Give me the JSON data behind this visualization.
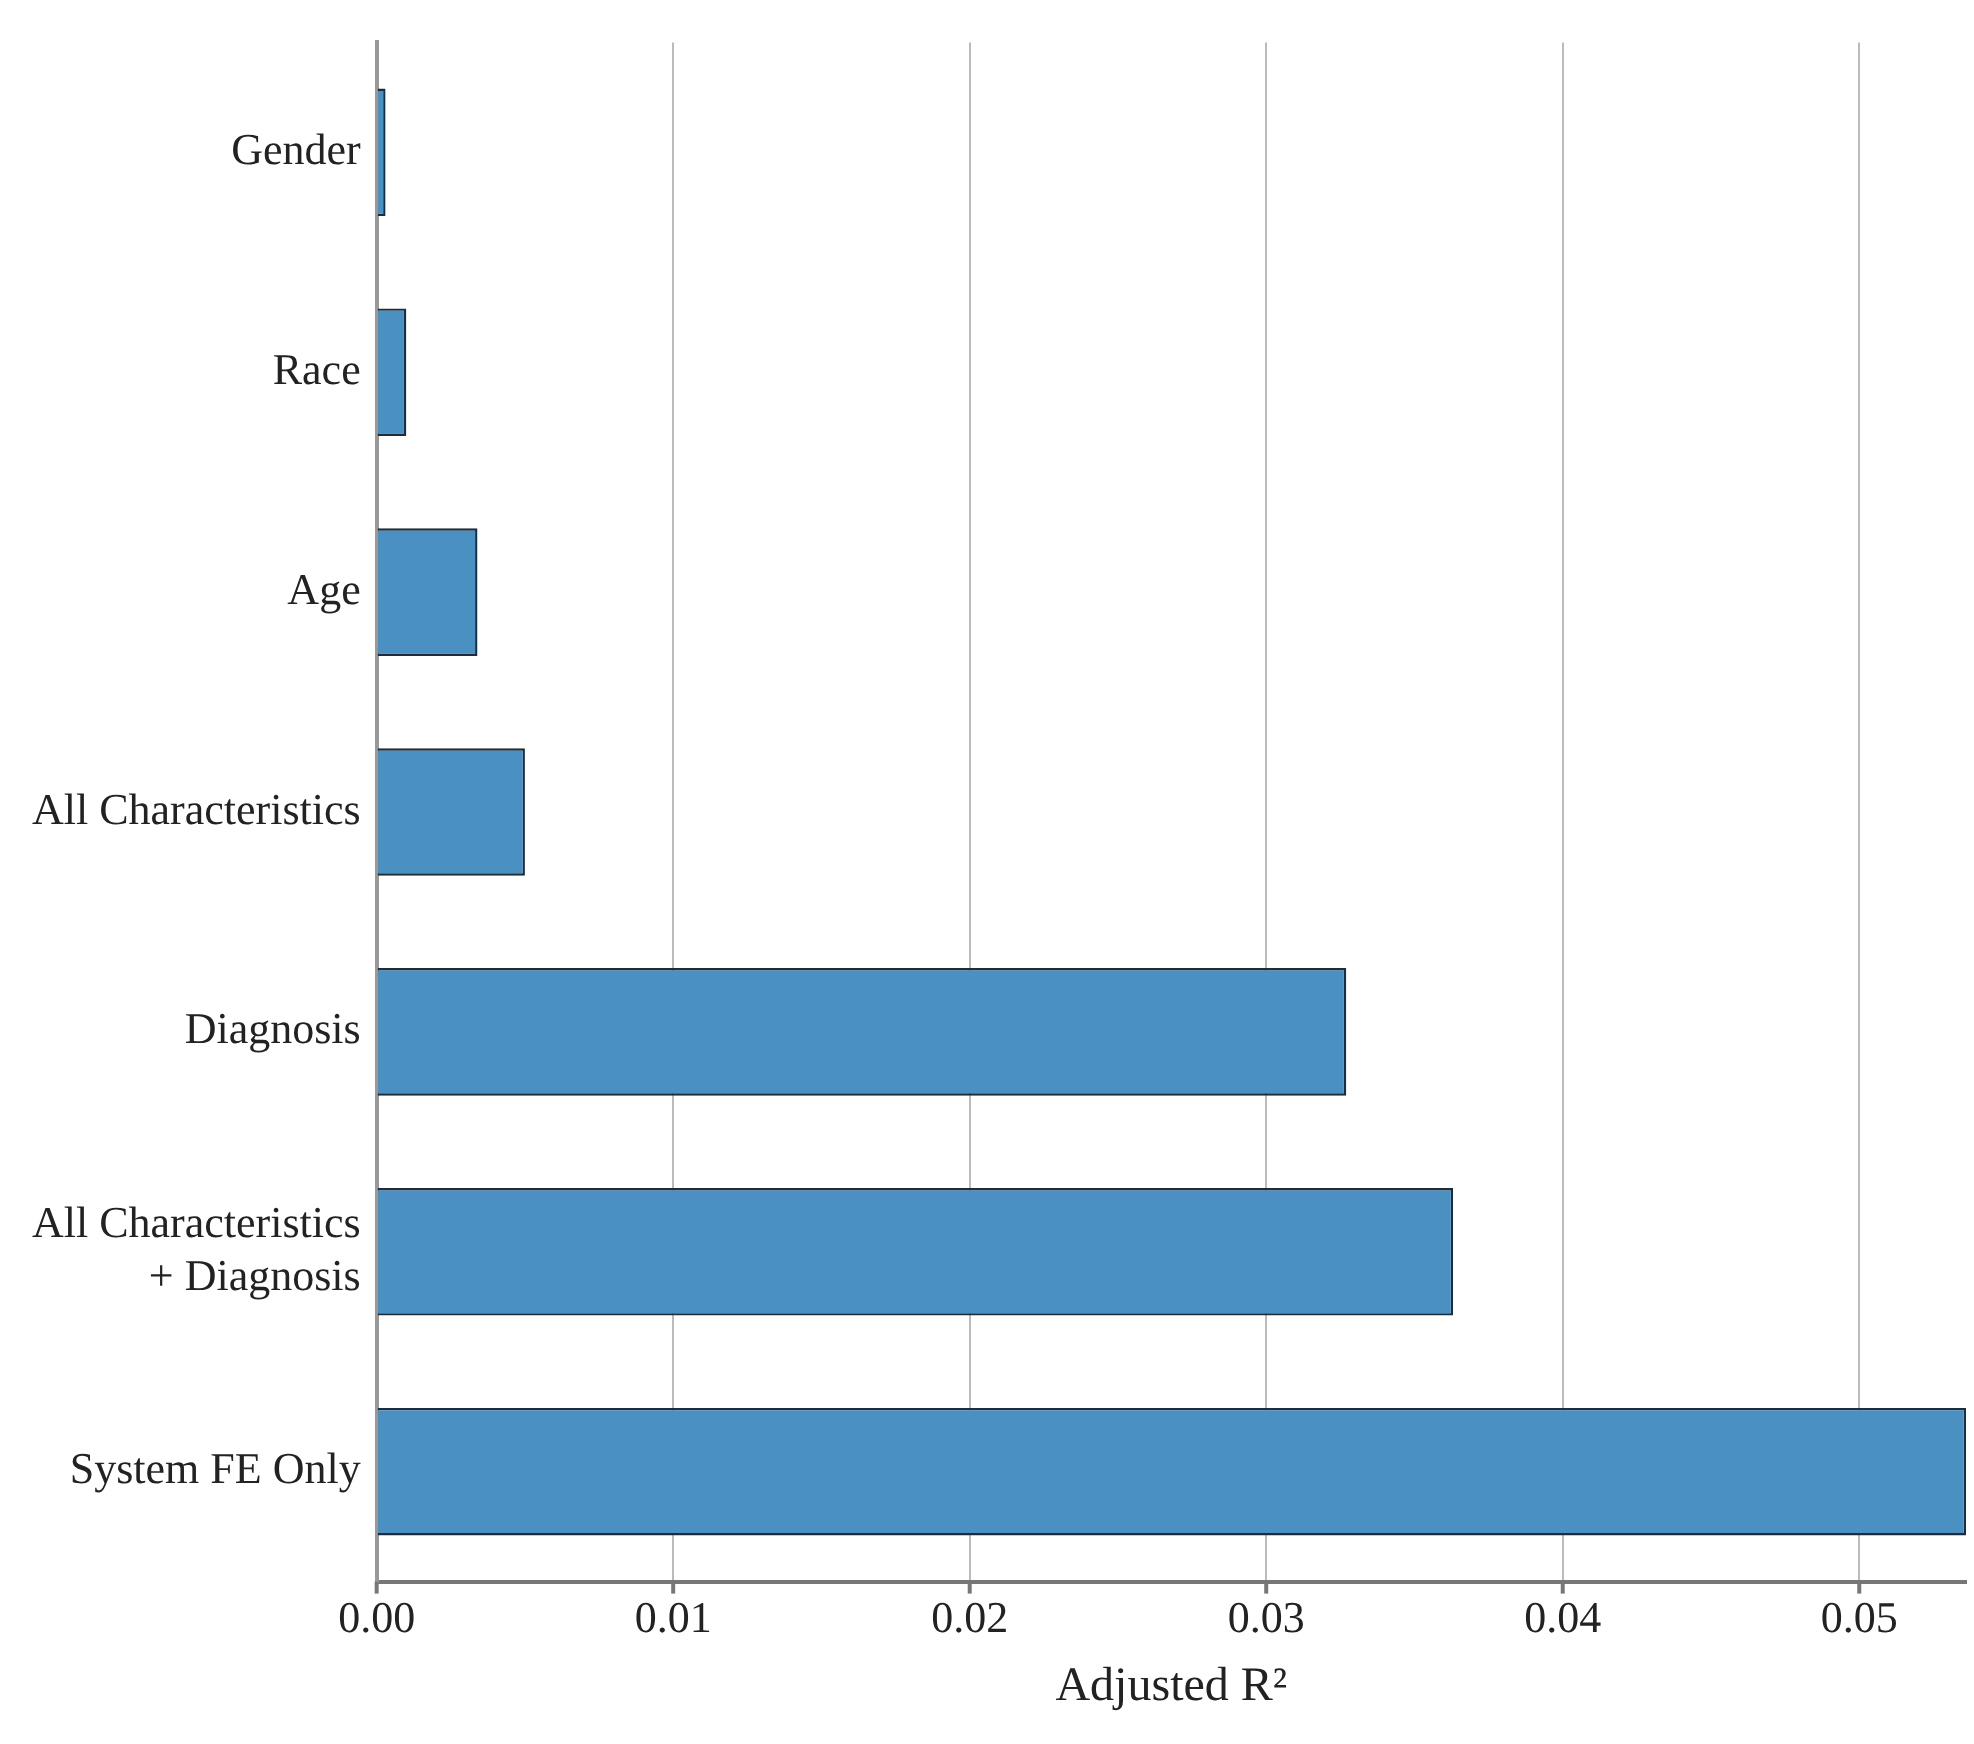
{
  "chart_data": {
    "type": "bar",
    "orientation": "horizontal",
    "xlabel": "Adjusted R²",
    "categories": [
      "Gender",
      "Race",
      "Age",
      "All Characteristics",
      "Diagnosis",
      "All Characteristics\n+ Diagnosis",
      "System FE Only"
    ],
    "values": [
      0.0003,
      0.001,
      0.0034,
      0.005,
      0.0327,
      0.0363,
      0.0536
    ],
    "color": "#4a90c2",
    "xlim": [
      0,
      0.0536
    ],
    "xticks": [
      {
        "value": 0,
        "label": "0.00"
      },
      {
        "value": 0.01,
        "label": "0.01"
      },
      {
        "value": 0.02,
        "label": "0.02"
      },
      {
        "value": 0.03,
        "label": "0.03"
      },
      {
        "value": 0.04,
        "label": "0.04"
      },
      {
        "value": 0.05,
        "label": "0.05"
      }
    ],
    "grid": "x",
    "legend": false
  }
}
